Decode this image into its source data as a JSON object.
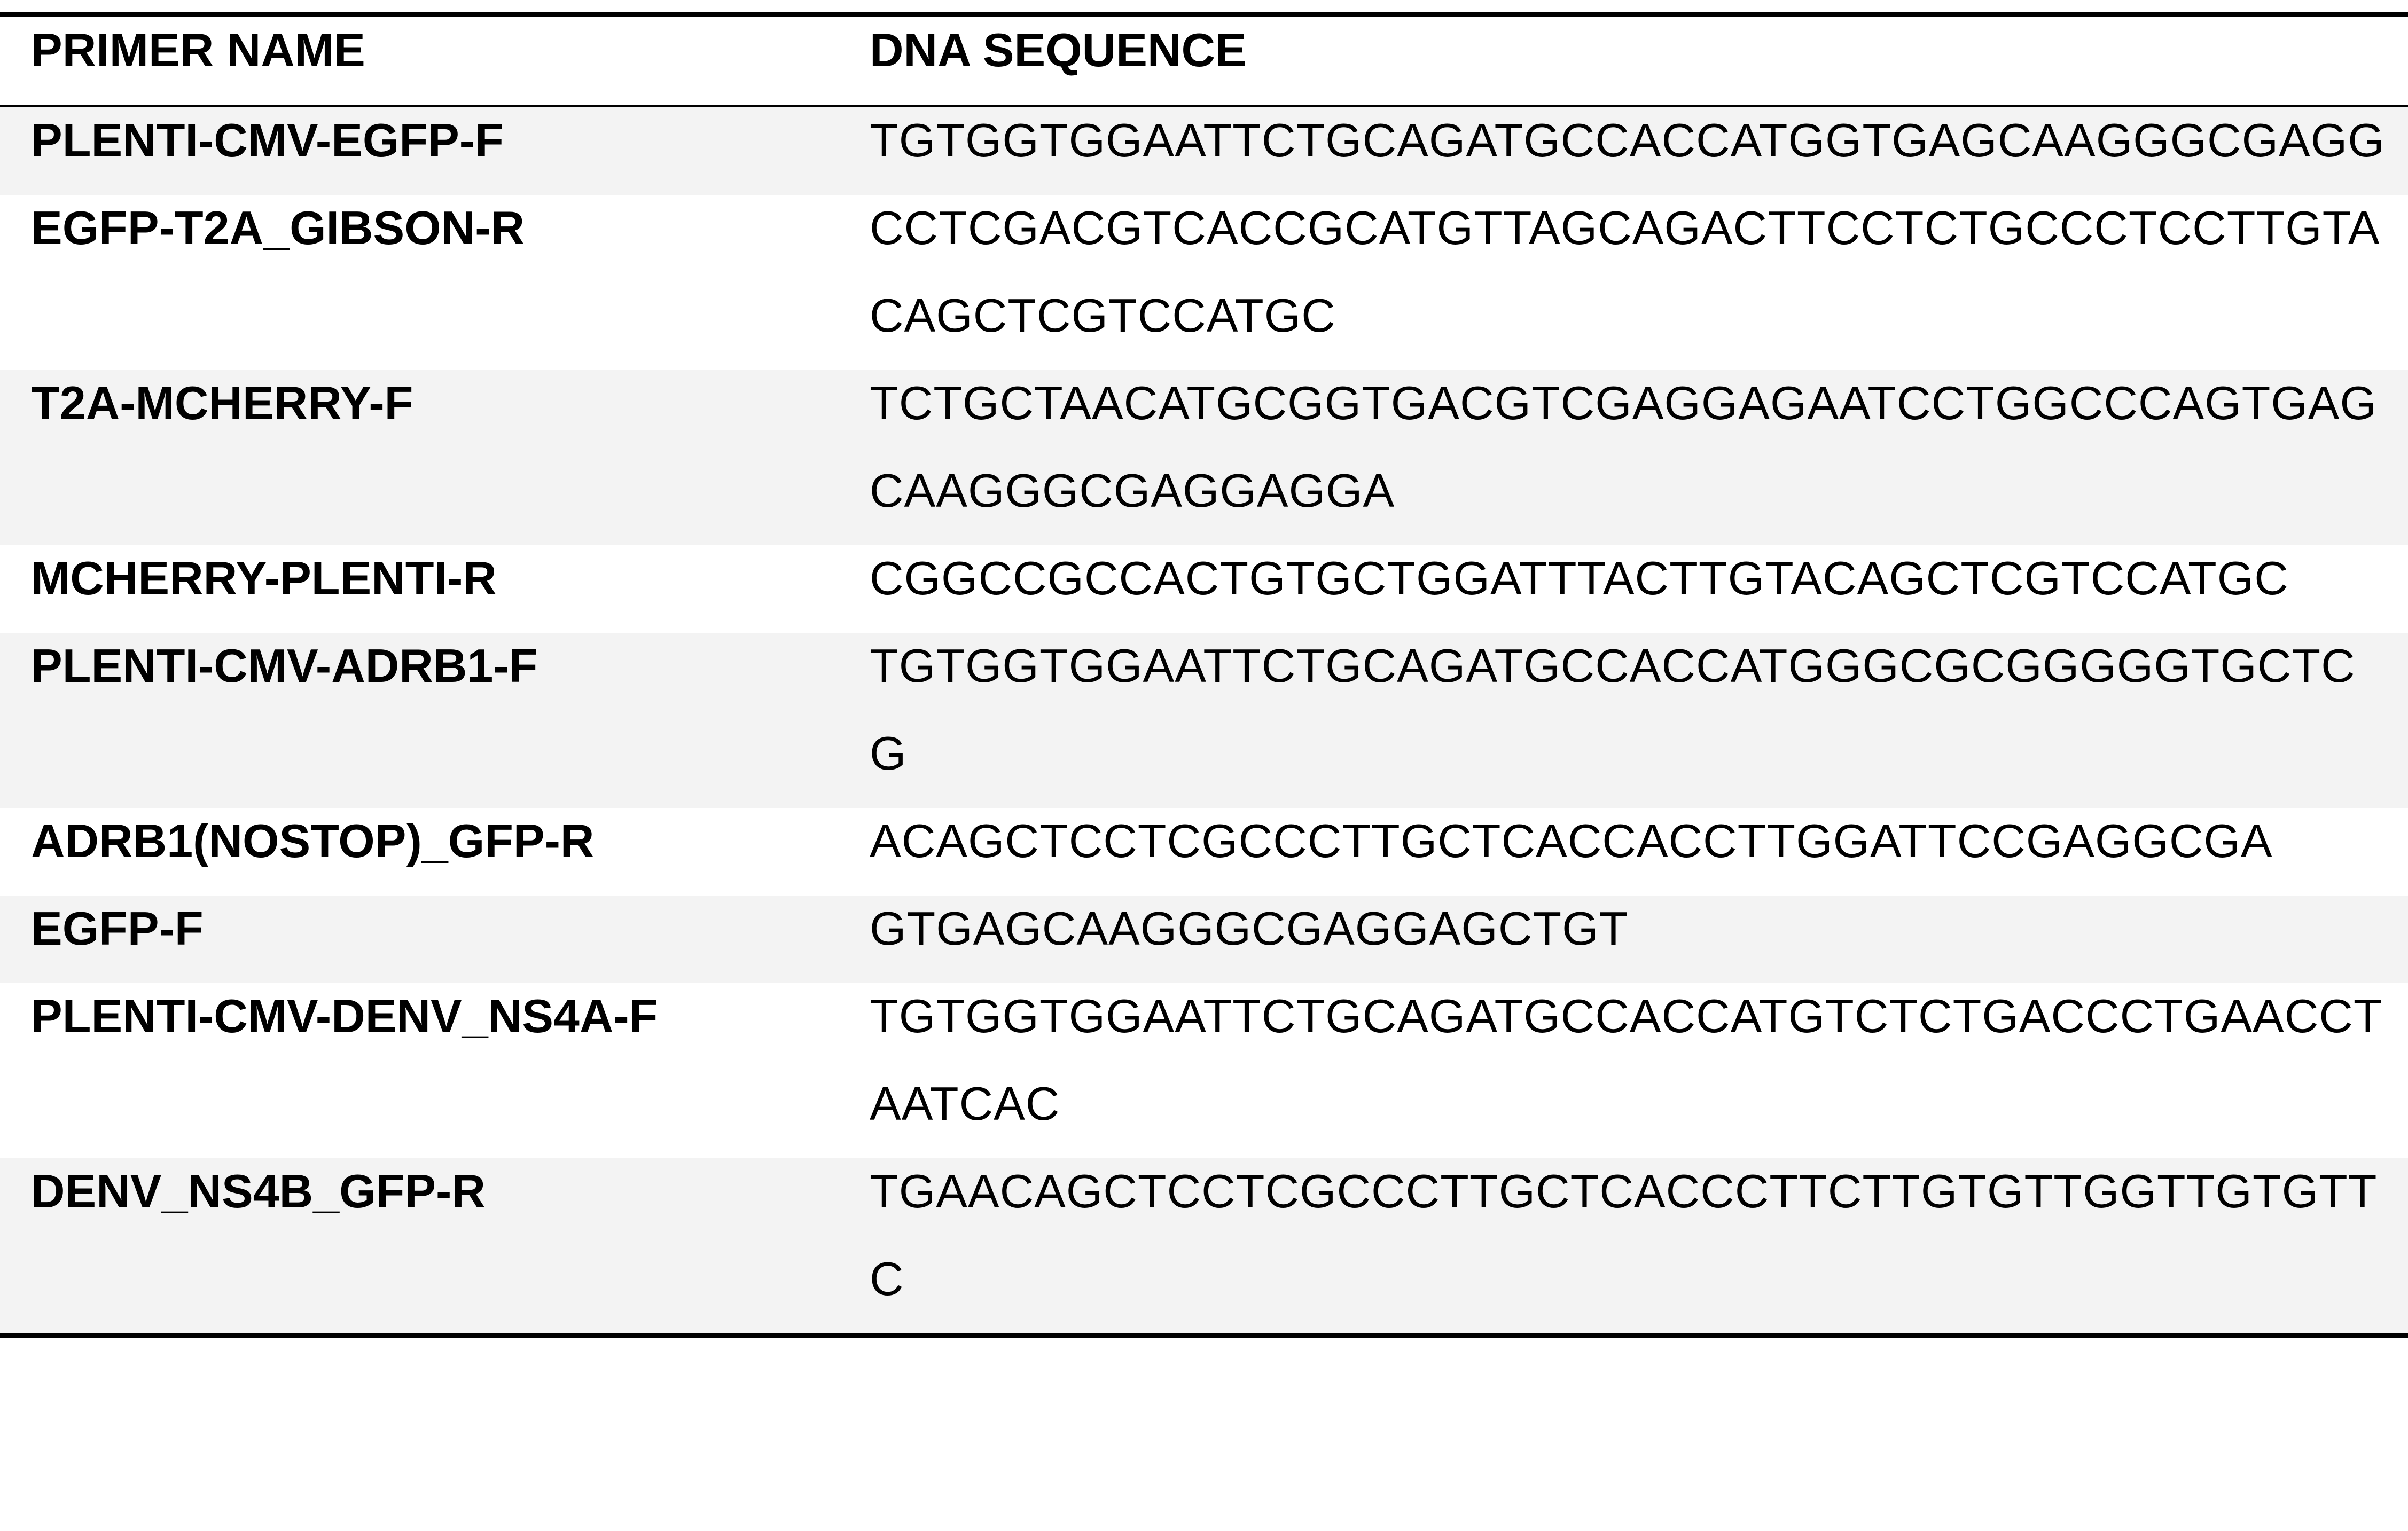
{
  "table": {
    "columns": [
      "PRIMER NAME",
      "DNA SEQUENCE"
    ],
    "rows": [
      [
        "PLENTI-CMV-EGFP-F",
        "TGTGGTGGAATTCTGCAGATGCCACCATGGTGAGCAAGGGCGAGG"
      ],
      [
        "EGFP-T2A_GIBSON-R",
        "CCTCGACGTCACCGCATGTTAGCAGACTTCCTCTGCCCTCCTTGTACAGCTCGTCCATGC"
      ],
      [
        "T2A-MCHERRY-F",
        "TCTGCTAACATGCGGTGACGTCGAGGAGAATCCTGGCCCAGTGAGCAAGGGCGAGGAGGA"
      ],
      [
        "MCHERRY-PLENTI-R",
        "CGGCCGCCACTGTGCTGGATTTACTTGTACAGCTCGTCCATGC"
      ],
      [
        "PLENTI-CMV-ADRB1-F",
        "TGTGGTGGAATTCTGCAGATGCCACCATGGGCGCGGGGGTGCTCG"
      ],
      [
        "ADRB1(NOSTOP)_GFP-R",
        "ACAGCTCCTCGCCCTTGCTCACCACCTTGGATTCCGAGGCGA"
      ],
      [
        "EGFP-F",
        "GTGAGCAAGGGCGAGGAGCTGT"
      ],
      [
        "PLENTI-CMV-DENV_NS4A-F",
        "TGTGGTGGAATTCTGCAGATGCCACCATGTCTCTGACCCTGAACCTAATCAC"
      ],
      [
        "DENV_NS4B_GFP-R",
        "TGAACAGCTCCTCGCCCTTGCTCACCCTTCTTGTGTTGGTTGTGTTC"
      ]
    ]
  }
}
